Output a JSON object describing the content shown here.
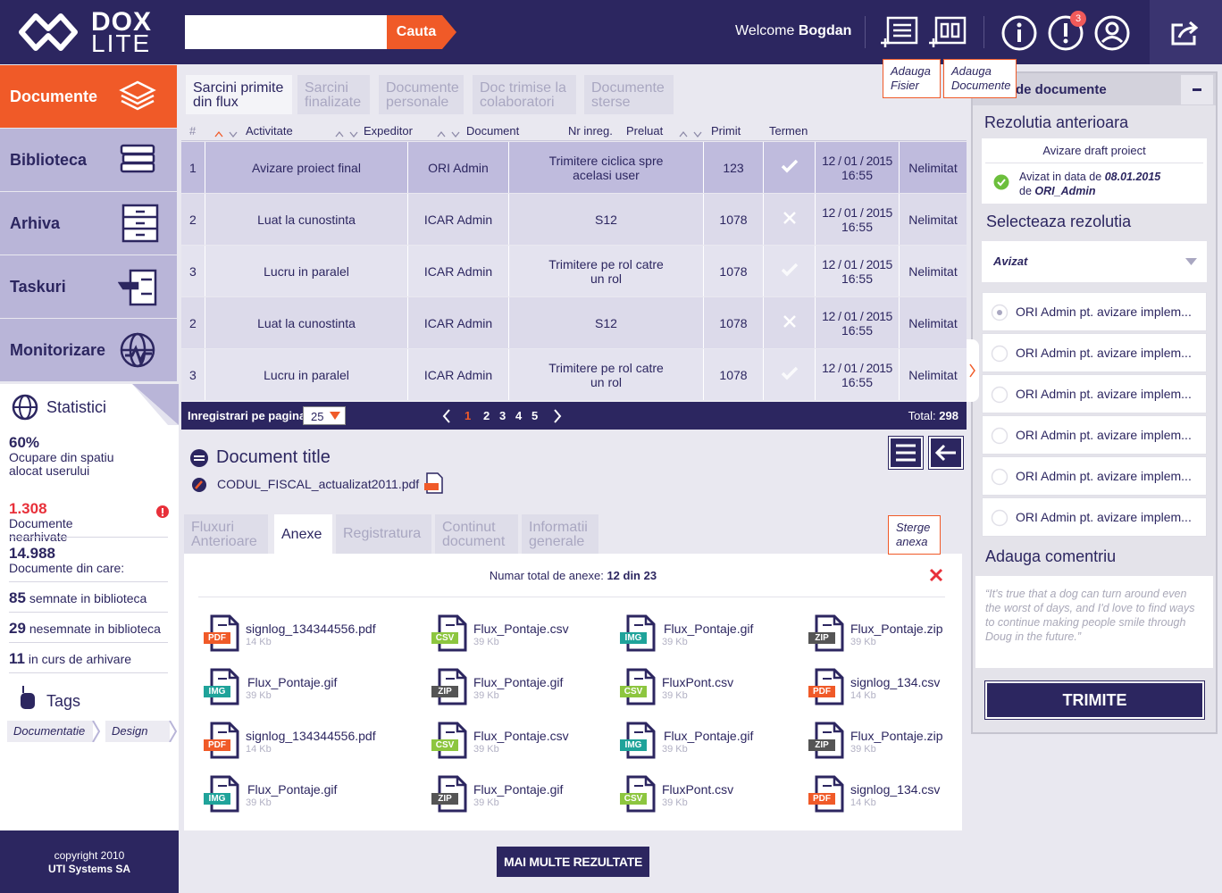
{
  "header": {
    "logo_top": "DOX",
    "logo_bottom": "LITE",
    "search_button": "Cauta",
    "welcome": "Welcome",
    "user": "Bogdan",
    "notifications": "3",
    "tooltips": [
      "Adauga Fisier",
      "Adauga Documente"
    ]
  },
  "sidebar": {
    "nav": [
      "Documente",
      "Biblioteca",
      "Arhiva",
      "Taskuri",
      "Monitorizare"
    ],
    "stats_title": "Statistici",
    "stats": [
      {
        "value": "60%",
        "label": "Ocupare din spatiu alocat userului"
      },
      {
        "value": "1.308",
        "label": "Documente nearhivate"
      },
      {
        "value": "14.988",
        "label": "Documente din care:"
      },
      {
        "value": "85",
        "label": "semnate in biblioteca"
      },
      {
        "value": "29",
        "label": "nesemnate in biblioteca"
      },
      {
        "value": "11",
        "label": "in curs de arhivare"
      }
    ],
    "tags_title": "Tags",
    "tags": [
      "Documentatie",
      "Design"
    ]
  },
  "footer": {
    "copyright": "copyright 2010",
    "company": "UTI Systems SA"
  },
  "tasks": {
    "tabs": [
      "Sarcini primite din flux",
      "Sarcini finalizate",
      "Documente personale",
      "Doc trimise la colaboratori",
      "Documente sterse"
    ],
    "columns": [
      "#",
      "Activitate",
      "Expeditor",
      "Document",
      "Nr inreg.",
      "Preluat",
      "Primit",
      "Termen"
    ],
    "rows": [
      {
        "index": "1",
        "activity": "Avizare proiect final",
        "sender": "ORI Admin",
        "document": "Trimitere ciclica spre acelasi user",
        "number": "123",
        "accepted": true,
        "date": "12 / 01 / 2015",
        "time": "16:55",
        "deadline": "Nelimitat"
      },
      {
        "index": "2",
        "activity": "Luat la cunostinta",
        "sender": "ICAR Admin",
        "document": "S12",
        "number": "1078",
        "accepted": false,
        "date": "12 / 01 / 2015",
        "time": "16:55",
        "deadline": "Nelimitat"
      },
      {
        "index": "3",
        "activity": "Lucru in paralel",
        "sender": "ICAR Admin",
        "document": "Trimitere pe rol catre un rol",
        "number": "1078",
        "accepted": true,
        "date": "12 / 01 / 2015",
        "time": "16:55",
        "deadline": "Nelimitat"
      },
      {
        "index": "2",
        "activity": "Luat la cunostinta",
        "sender": "ICAR Admin",
        "document": "S12",
        "number": "1078",
        "accepted": false,
        "date": "12 / 01 / 2015",
        "time": "16:55",
        "deadline": "Nelimitat"
      },
      {
        "index": "3",
        "activity": "Lucru in paralel",
        "sender": "ICAR Admin",
        "document": "Trimitere pe rol catre un rol",
        "number": "1078",
        "accepted": true,
        "date": "12 / 01 / 2015",
        "time": "16:55",
        "deadline": "Nelimitat"
      }
    ]
  },
  "pagination": {
    "label": "Inregistrari pe pagina",
    "per_page": "25",
    "pages": [
      "1",
      "2",
      "3",
      "4",
      "5"
    ],
    "total_label": "Total:",
    "total": "298"
  },
  "document": {
    "title": "Document title",
    "file": "CODUL_FISCAL_actualizat2011.pdf",
    "tabs": [
      "Fluxuri Anterioare",
      "Anexe",
      "Registratura",
      "Continut document",
      "Informatii generale"
    ],
    "delete_tooltip": "Sterge anexa",
    "count_label": "Numar total de anexe:",
    "count": "12 din 23",
    "files": [
      {
        "name": "signlog_134344556.pdf",
        "size": "14 Kb",
        "type": "PDF"
      },
      {
        "name": "Flux_Pontaje.csv",
        "size": "39 Kb",
        "type": "CSV"
      },
      {
        "name": "Flux_Pontaje.gif",
        "size": "39 Kb",
        "type": "IMG"
      },
      {
        "name": "Flux_Pontaje.zip",
        "size": "39 Kb",
        "type": "ZIP"
      },
      {
        "name": "Flux_Pontaje.gif",
        "size": "39 Kb",
        "type": "IMG"
      },
      {
        "name": "Flux_Pontaje.gif",
        "size": "39 Kb",
        "type": "ZIP"
      },
      {
        "name": "FluxPont.csv",
        "size": "39 Kb",
        "type": "CSV"
      },
      {
        "name": "signlog_134.csv",
        "size": "14 Kb",
        "type": "PDF"
      },
      {
        "name": "signlog_134344556.pdf",
        "size": "14 Kb",
        "type": "PDF"
      },
      {
        "name": "Flux_Pontaje.csv",
        "size": "39 Kb",
        "type": "CSV"
      },
      {
        "name": "Flux_Pontaje.gif",
        "size": "39 Kb",
        "type": "IMG"
      },
      {
        "name": "Flux_Pontaje.zip",
        "size": "39 Kb",
        "type": "ZIP"
      },
      {
        "name": "Flux_Pontaje.gif",
        "size": "39 Kb",
        "type": "IMG"
      },
      {
        "name": "Flux_Pontaje.gif",
        "size": "39 Kb",
        "type": "ZIP"
      },
      {
        "name": "FluxPont.csv",
        "size": "39 Kb",
        "type": "CSV"
      },
      {
        "name": "signlog_134.csv",
        "size": "14 Kb",
        "type": "PDF"
      }
    ],
    "more_button": "MAI MULTE REZULTATE"
  },
  "panel": {
    "header": "de documente",
    "previous_title": "Rezolutia anterioara",
    "previous_name": "Avizare draft proiect",
    "approved_prefix": "Avizat in data de",
    "approved_date": "08.01.2015",
    "approved_by_prefix": "de",
    "approved_by": "ORI_Admin",
    "select_title": "Selecteaza rezolutia",
    "selected": "Avizat",
    "options": [
      "ORI Admin pt. avizare implem...",
      "ORI Admin pt. avizare implem...",
      "ORI Admin pt. avizare implem...",
      "ORI Admin pt. avizare implem...",
      "ORI Admin pt. avizare implem...",
      "ORI Admin pt. avizare implem..."
    ],
    "comment_title": "Adauga comentriu",
    "comment": "“It's true that a dog can turn around even the worst of days, and I'd love to find ways to continue making people smile through Doug in the future.”",
    "submit": "TRIMITE"
  }
}
